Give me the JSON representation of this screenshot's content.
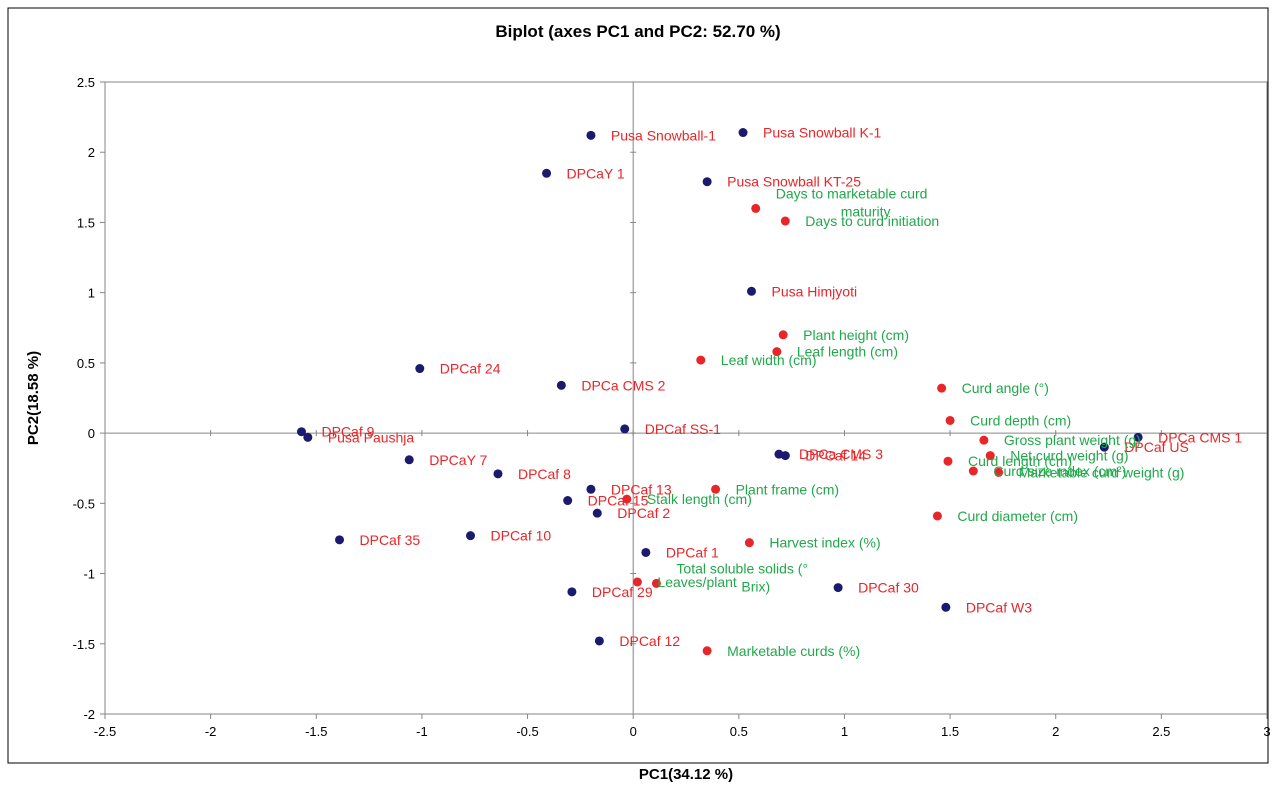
{
  "chart_data": {
    "type": "scatter",
    "title": "Biplot (axes PC1 and PC2: 52.70 %)",
    "xlabel": "PC1(34.12 %)",
    "ylabel": "PC2(18.58 %)",
    "xlim": [
      -2.5,
      3
    ],
    "ylim": [
      -2,
      2.5
    ],
    "xticks": [
      -2.5,
      -2,
      -1.5,
      -1,
      -0.5,
      0,
      0.5,
      1,
      1.5,
      2,
      2.5,
      3
    ],
    "yticks": [
      -2,
      -1.5,
      -1,
      -0.5,
      0,
      0.5,
      1,
      1.5,
      2,
      2.5
    ],
    "xtick_labels": [
      "-2.5",
      "-2",
      "-1.5",
      "-1",
      "-0.5",
      "0",
      "0.5",
      "1",
      "1.5",
      "2",
      "2.5",
      "3"
    ],
    "ytick_labels": [
      "-2",
      "-1.5",
      "-1",
      "-0.5",
      "0",
      "0.5",
      "1",
      "1.5",
      "2",
      "2.5"
    ],
    "grid": false,
    "legend": "none",
    "colors": {
      "observation_point": "#1a1a6e",
      "observation_label": "#e8262a",
      "variable_point": "#e8262a",
      "variable_label": "#20a84a"
    },
    "series": [
      {
        "points": [
          {
            "x": -0.2,
            "y": 2.12,
            "label": "Pusa Snowball-1"
          },
          {
            "x": 0.52,
            "y": 2.14,
            "label": "Pusa Snowball K-1"
          },
          {
            "x": -0.41,
            "y": 1.85,
            "label": "DPCaY 1"
          },
          {
            "x": 0.35,
            "y": 1.79,
            "label": "Pusa Snowball KT-25"
          },
          {
            "x": 0.56,
            "y": 1.01,
            "label": "Pusa Himjyoti"
          },
          {
            "x": -1.01,
            "y": 0.46,
            "label": "DPCaf 24"
          },
          {
            "x": -0.34,
            "y": 0.34,
            "label": "DPCa CMS 2"
          },
          {
            "x": -0.04,
            "y": 0.03,
            "label": "DPCaf SS-1"
          },
          {
            "x": -1.57,
            "y": 0.01,
            "label": "DPCaf 9"
          },
          {
            "x": -1.54,
            "y": -0.03,
            "label": "Pusa Paushja"
          },
          {
            "x": 2.39,
            "y": -0.03,
            "label": "DPCa CMS 1"
          },
          {
            "x": 2.23,
            "y": -0.1,
            "label": "DPCaf US"
          },
          {
            "x": 0.69,
            "y": -0.15,
            "label": "DPCa CMS 3"
          },
          {
            "x": 0.72,
            "y": -0.16,
            "label": "DPCaf 14"
          },
          {
            "x": -1.06,
            "y": -0.19,
            "label": "DPCaY 7"
          },
          {
            "x": -0.64,
            "y": -0.29,
            "label": "DPCaf 8"
          },
          {
            "x": -0.2,
            "y": -0.4,
            "label": "DPCaf 13"
          },
          {
            "x": -0.31,
            "y": -0.48,
            "label": "DPCaf 15"
          },
          {
            "x": -0.17,
            "y": -0.57,
            "label": "DPCaf 2"
          },
          {
            "x": -1.39,
            "y": -0.76,
            "label": "DPCaf 35"
          },
          {
            "x": -0.77,
            "y": -0.73,
            "label": "DPCaf 10"
          },
          {
            "x": 0.06,
            "y": -0.85,
            "label": "DPCaf 1"
          },
          {
            "x": -0.29,
            "y": -1.13,
            "label": "DPCaf 29"
          },
          {
            "x": 0.97,
            "y": -1.1,
            "label": "DPCaf 30"
          },
          {
            "x": 1.48,
            "y": -1.24,
            "label": "DPCaf W3"
          },
          {
            "x": -0.16,
            "y": -1.48,
            "label": "DPCaf 12"
          }
        ]
      },
      {
        "points": [
          {
            "x": 0.58,
            "y": 1.6,
            "label": "Days to marketable curd maturity"
          },
          {
            "x": 0.72,
            "y": 1.51,
            "label": "Days to curd initiation"
          },
          {
            "x": 0.71,
            "y": 0.7,
            "label": "Plant height (cm)"
          },
          {
            "x": 0.68,
            "y": 0.58,
            "label": "Leaf length (cm)"
          },
          {
            "x": 0.32,
            "y": 0.52,
            "label": "Leaf width (cm)"
          },
          {
            "x": 1.46,
            "y": 0.32,
            "label": "Curd angle (°)"
          },
          {
            "x": 1.5,
            "y": 0.09,
            "label": "Curd depth (cm)"
          },
          {
            "x": 1.66,
            "y": -0.05,
            "label": "Gross plant weight (g)"
          },
          {
            "x": 1.69,
            "y": -0.16,
            "label": "Net curd weight (g)"
          },
          {
            "x": 1.49,
            "y": -0.2,
            "label": "Curd length (cm)"
          },
          {
            "x": 1.61,
            "y": -0.27,
            "label": "Curd size index (cm²)"
          },
          {
            "x": 1.73,
            "y": -0.28,
            "label": "Marketable curd weight (g)"
          },
          {
            "x": 0.39,
            "y": -0.4,
            "label": "Plant frame (cm)"
          },
          {
            "x": -0.03,
            "y": -0.47,
            "label": "Stalk length (cm)"
          },
          {
            "x": 1.44,
            "y": -0.59,
            "label": "Curd diameter (cm)"
          },
          {
            "x": 0.55,
            "y": -0.78,
            "label": "Harvest index (%)"
          },
          {
            "x": 0.02,
            "y": -1.06,
            "label": "Leaves/plant"
          },
          {
            "x": 0.11,
            "y": -1.07,
            "label": "Total soluble solids (° Brix)"
          },
          {
            "x": 0.35,
            "y": -1.55,
            "label": "Marketable curds (%)"
          }
        ]
      }
    ]
  }
}
